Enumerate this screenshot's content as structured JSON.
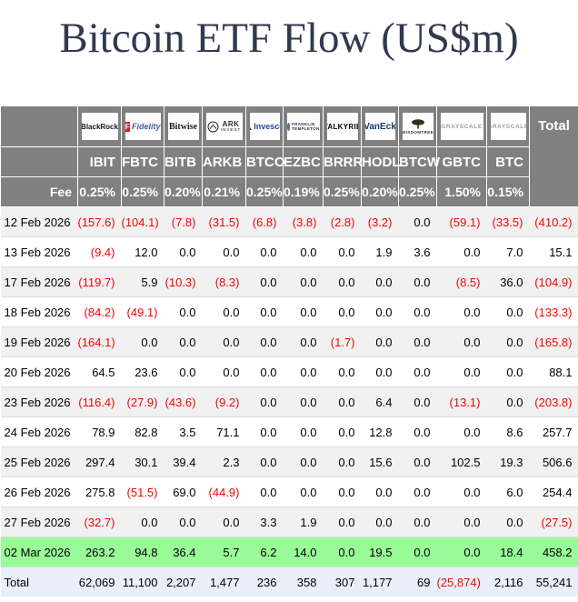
{
  "chart_data": {
    "type": "table",
    "title": "Bitcoin ETF Flow (US$m)",
    "negative_format": "parentheses-red",
    "header": {
      "fee_label": "Fee",
      "total_column_label": "Total",
      "columns": [
        {
          "provider": "BlackRock",
          "logo": "blackrock",
          "logo_lines": [
            "BlackRock"
          ],
          "ticker": "IBIT",
          "fee": "0.25%"
        },
        {
          "provider": "Fidelity",
          "logo": "fidelity",
          "logo_mark": "F",
          "logo_lines": [
            "Fidelity"
          ],
          "ticker": "FBTC",
          "fee": "0.25%"
        },
        {
          "provider": "Bitwise",
          "logo": "bitwise",
          "logo_lines": [
            "Bitwise"
          ],
          "ticker": "BITB",
          "fee": "0.20%"
        },
        {
          "provider": "ARK Invest",
          "logo": "ark",
          "logo_lines": [
            "ARK",
            "INVEST"
          ],
          "ticker": "ARKB",
          "fee": "0.21%"
        },
        {
          "provider": "Invesco",
          "logo": "invesco",
          "logo_lines": [
            "Invesco"
          ],
          "ticker": "BTCO",
          "fee": "0.25%"
        },
        {
          "provider": "Franklin Templeton",
          "logo": "franklin",
          "logo_lines": [
            "FRANKLIN",
            "TEMPLETON"
          ],
          "ticker": "EZBC",
          "fee": "0.19%"
        },
        {
          "provider": "Valkyrie",
          "logo": "valkyrie",
          "logo_lines": [
            "VALKYRIE"
          ],
          "ticker": "BRRR",
          "fee": "0.25%"
        },
        {
          "provider": "VanEck",
          "logo": "vaneck",
          "logo_lines": [
            "VanEck"
          ],
          "ticker": "HODL",
          "fee": "0.20%"
        },
        {
          "provider": "WisdomTree",
          "logo": "wisdomtree",
          "logo_lines": [
            "WISDOMTREE"
          ],
          "ticker": "BTCW",
          "fee": "0.25%"
        },
        {
          "provider": "Grayscale",
          "logo": "grayscale",
          "logo_lines": [
            "GRAYSCALE"
          ],
          "ticker": "GBTC",
          "fee": "1.50%"
        },
        {
          "provider": "Grayscale",
          "logo": "grayscale",
          "logo_lines": [
            "GRAYSCALE"
          ],
          "ticker": "BTC",
          "fee": "0.15%"
        }
      ]
    },
    "rows": [
      {
        "date": "12 Feb 2026",
        "values": [
          "(157.6)",
          "(104.1)",
          "(7.8)",
          "(31.5)",
          "(6.8)",
          "(3.8)",
          "(2.8)",
          "(3.2)",
          "0.0",
          "(59.1)",
          "(33.5)"
        ],
        "total": "(410.2)"
      },
      {
        "date": "13 Feb 2026",
        "values": [
          "(9.4)",
          "12.0",
          "0.0",
          "0.0",
          "0.0",
          "0.0",
          "0.0",
          "1.9",
          "3.6",
          "0.0",
          "7.0"
        ],
        "total": "15.1"
      },
      {
        "date": "17 Feb 2026",
        "values": [
          "(119.7)",
          "5.9",
          "(10.3)",
          "(8.3)",
          "0.0",
          "0.0",
          "0.0",
          "0.0",
          "0.0",
          "(8.5)",
          "36.0"
        ],
        "total": "(104.9)"
      },
      {
        "date": "18 Feb 2026",
        "values": [
          "(84.2)",
          "(49.1)",
          "0.0",
          "0.0",
          "0.0",
          "0.0",
          "0.0",
          "0.0",
          "0.0",
          "0.0",
          "0.0"
        ],
        "total": "(133.3)"
      },
      {
        "date": "19 Feb 2026",
        "values": [
          "(164.1)",
          "0.0",
          "0.0",
          "0.0",
          "0.0",
          "0.0",
          "(1.7)",
          "0.0",
          "0.0",
          "0.0",
          "0.0"
        ],
        "total": "(165.8)"
      },
      {
        "date": "20 Feb 2026",
        "values": [
          "64.5",
          "23.6",
          "0.0",
          "0.0",
          "0.0",
          "0.0",
          "0.0",
          "0.0",
          "0.0",
          "0.0",
          "0.0"
        ],
        "total": "88.1"
      },
      {
        "date": "23 Feb 2026",
        "values": [
          "(116.4)",
          "(27.9)",
          "(43.6)",
          "(9.2)",
          "0.0",
          "0.0",
          "0.0",
          "6.4",
          "0.0",
          "(13.1)",
          "0.0"
        ],
        "total": "(203.8)"
      },
      {
        "date": "24 Feb 2026",
        "values": [
          "78.9",
          "82.8",
          "3.5",
          "71.1",
          "0.0",
          "0.0",
          "0.0",
          "12.8",
          "0.0",
          "0.0",
          "8.6"
        ],
        "total": "257.7"
      },
      {
        "date": "25 Feb 2026",
        "values": [
          "297.4",
          "30.1",
          "39.4",
          "2.3",
          "0.0",
          "0.0",
          "0.0",
          "15.6",
          "0.0",
          "102.5",
          "19.3"
        ],
        "total": "506.6"
      },
      {
        "date": "26 Feb 2026",
        "values": [
          "275.8",
          "(51.5)",
          "69.0",
          "(44.9)",
          "0.0",
          "0.0",
          "0.0",
          "0.0",
          "0.0",
          "0.0",
          "6.0"
        ],
        "total": "254.4"
      },
      {
        "date": "27 Feb 2026",
        "values": [
          "(32.7)",
          "0.0",
          "0.0",
          "0.0",
          "3.3",
          "1.9",
          "0.0",
          "0.0",
          "0.0",
          "0.0",
          "0.0"
        ],
        "total": "(27.5)"
      },
      {
        "date": "02 Mar 2026",
        "highlight": true,
        "values": [
          "263.2",
          "94.8",
          "36.4",
          "5.7",
          "6.2",
          "14.0",
          "0.0",
          "19.5",
          "0.0",
          "0.0",
          "18.4"
        ],
        "total": "458.2"
      }
    ],
    "totals_row": {
      "label": "Total",
      "values": [
        "62,069",
        "11,100",
        "2,207",
        "1,477",
        "236",
        "358",
        "307",
        "1,177",
        "69",
        "(25,874)",
        "2,116"
      ],
      "total": "55,241"
    }
  },
  "colors": {
    "title": "#323850",
    "header_bg": "#808080",
    "header_text": "#ffffff",
    "negative": "#ff0000",
    "highlight_row_bg": "#98fb98",
    "totals_row_bg": "#e9eff9",
    "alt_row_bg": "#f1f1f1",
    "row_bg": "#ffffff"
  }
}
